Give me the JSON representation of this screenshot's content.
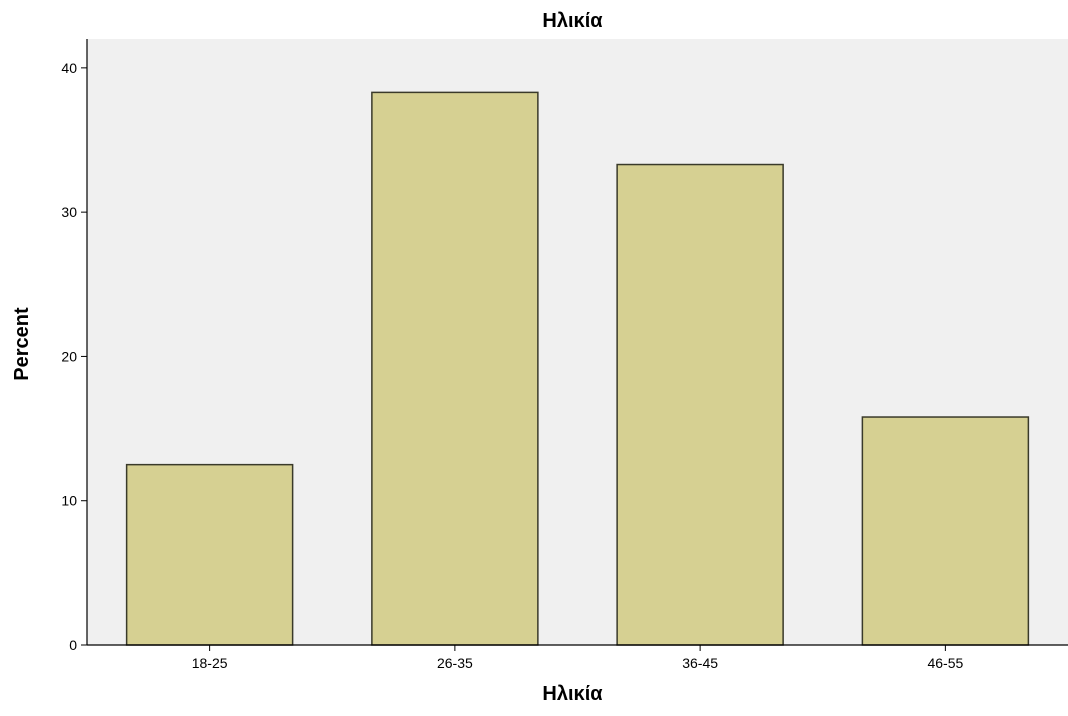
{
  "chart_data": {
    "type": "bar",
    "title": "Ηλικία",
    "xlabel": "Ηλικία",
    "ylabel": "Percent",
    "categories": [
      "18-25",
      "26-35",
      "36-45",
      "46-55"
    ],
    "values": [
      12.5,
      38.3,
      33.3,
      15.8
    ],
    "ylim": [
      0,
      42
    ],
    "yticks": [
      "0",
      "10",
      "20",
      "30",
      "40"
    ],
    "grid": false,
    "legend": "none",
    "colors": {
      "plot_background": "#f0f0f0",
      "bar_fill": "#d6d092",
      "bar_stroke": "#3a3a2a"
    }
  }
}
